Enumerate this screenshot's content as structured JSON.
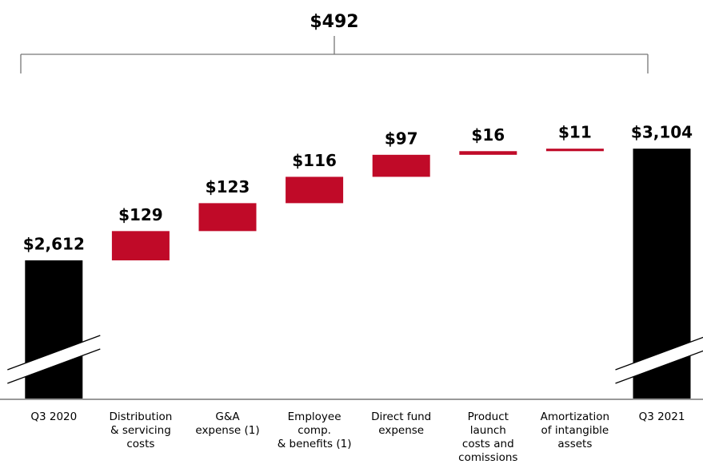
{
  "chart_data": {
    "type": "waterfall",
    "annotation": "$492",
    "categories": [
      [
        "Q3 2020"
      ],
      [
        "Distribution",
        "& servicing",
        "costs"
      ],
      [
        "G&A",
        "expense (1)"
      ],
      [
        "Employee",
        "comp.",
        "& benefits (1)"
      ],
      [
        "Direct fund",
        "expense"
      ],
      [
        "Product",
        "launch",
        "costs and",
        "comissions"
      ],
      [
        "Amortization",
        "of intangible",
        "assets"
      ],
      [
        "Q3 2021"
      ]
    ],
    "values": [
      2612,
      129,
      123,
      116,
      97,
      16,
      11,
      3104
    ],
    "value_labels": [
      "$2,612",
      "$129",
      "$123",
      "$116",
      "$97",
      "$16",
      "$11",
      "$3,104"
    ],
    "measures": [
      "absolute",
      "relative",
      "relative",
      "relative",
      "relative",
      "relative",
      "relative",
      "total"
    ],
    "colors": {
      "total": "#000000",
      "increase": "#c00a28"
    },
    "ylim": [
      2000,
      3400
    ]
  }
}
